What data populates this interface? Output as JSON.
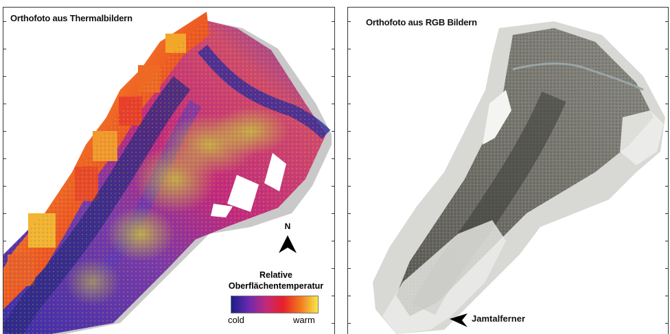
{
  "panels": {
    "thermal": {
      "title": "Orthofoto aus Thermalbildern",
      "north_label": "N",
      "legend": {
        "title_line1": "Relative",
        "title_line2": "Oberflächentemperatur",
        "low": "cold",
        "high": "warm",
        "gradient_colors": [
          "#1b1f8a",
          "#6a2ab0",
          "#c2297c",
          "#e8202a",
          "#f27a1f",
          "#f7e84a"
        ]
      }
    },
    "rgb": {
      "title": "Orthofoto aus RGB Bildern",
      "annotation": "Jamtalferner"
    }
  },
  "colors": {
    "cold": "#2f2aa0",
    "mid": "#c2297c",
    "warm": "#f7e84a",
    "hot": "#e8202a",
    "rgb_rock": "#6e6e68",
    "rgb_snow": "#e8e8e6"
  }
}
